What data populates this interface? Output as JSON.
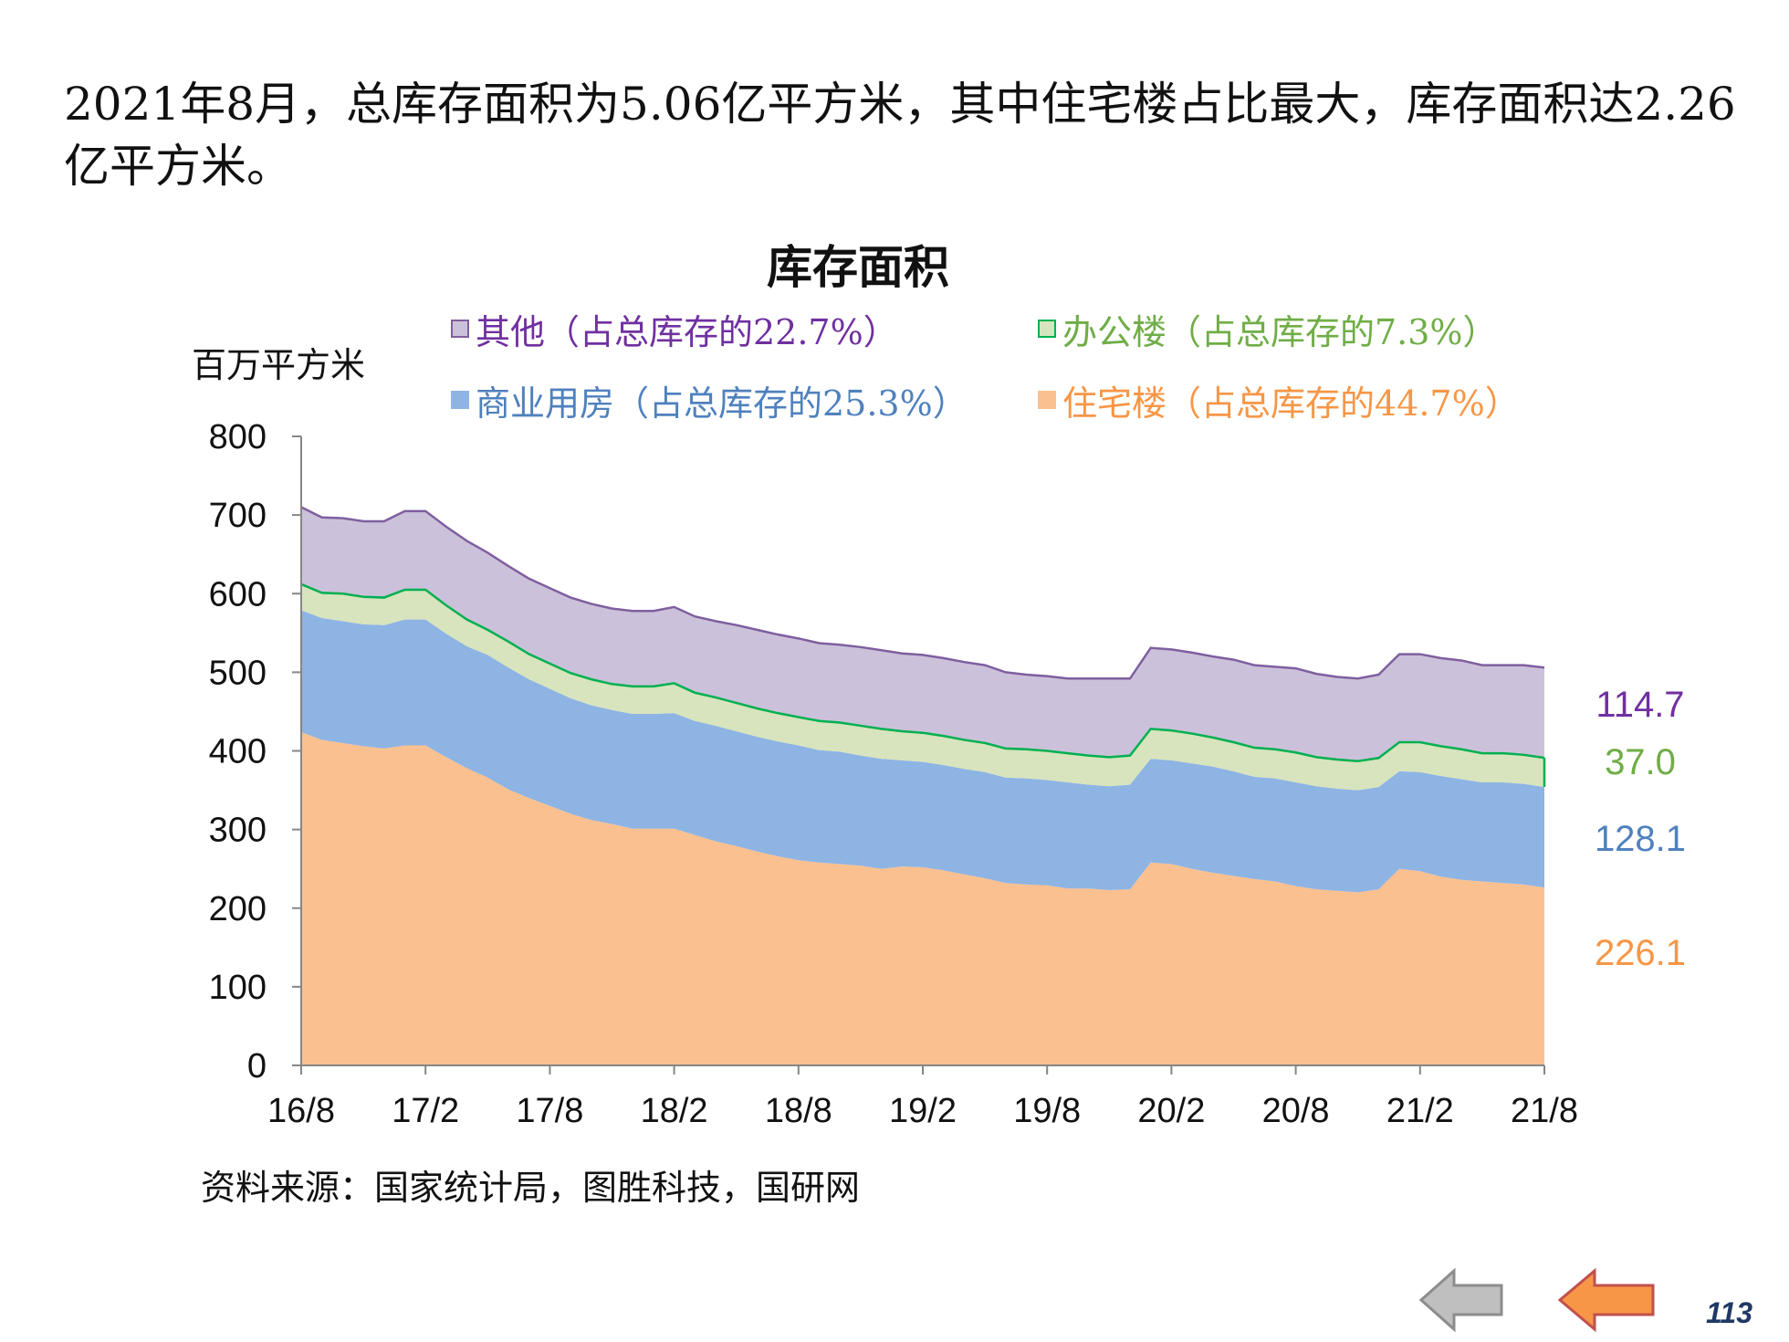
{
  "page": {
    "summary": "2021年8月，总库存面积为5.06亿平方米，其中住宅楼占比最大，库存面积达2.26亿平方米。",
    "source": "资料来源：国家统计局，图胜科技，国研网",
    "page_number": "113",
    "nav": {
      "prev_icon": "left-arrow-icon",
      "next_icon": "left-arrow-icon"
    }
  },
  "colors": {
    "residential": "#fac090",
    "commercial": "#8eb4e3",
    "office": "#d7e4bd",
    "office_line": "#00b050",
    "other": "#ccc1da",
    "other_line": "#7f5f9f",
    "label_residential": "#f79646",
    "label_commercial": "#4f81bd",
    "label_office": "#70ad47",
    "label_other": "#7030a0"
  },
  "chart_data": {
    "type": "area",
    "stacked": true,
    "title": "库存面积",
    "ylabel": "百万平方米",
    "ylim": [
      0,
      800
    ],
    "yticks": [
      "0",
      "100",
      "200",
      "300",
      "400",
      "500",
      "600",
      "700",
      "800"
    ],
    "xtick_labels": [
      "16/8",
      "17/2",
      "17/8",
      "18/2",
      "18/8",
      "19/2",
      "19/8",
      "20/2",
      "20/8",
      "21/2",
      "21/8"
    ],
    "x": [
      "16/8",
      "16/9",
      "16/10",
      "16/11",
      "16/12",
      "17/1",
      "17/2",
      "17/3",
      "17/4",
      "17/5",
      "17/6",
      "17/7",
      "17/8",
      "17/9",
      "17/10",
      "17/11",
      "17/12",
      "18/1",
      "18/2",
      "18/3",
      "18/4",
      "18/5",
      "18/6",
      "18/7",
      "18/8",
      "18/9",
      "18/10",
      "18/11",
      "18/12",
      "19/1",
      "19/2",
      "19/3",
      "19/4",
      "19/5",
      "19/6",
      "19/7",
      "19/8",
      "19/9",
      "19/10",
      "19/11",
      "19/12",
      "20/1",
      "20/2",
      "20/3",
      "20/4",
      "20/5",
      "20/6",
      "20/7",
      "20/8",
      "20/9",
      "20/10",
      "20/11",
      "20/12",
      "21/1",
      "21/2",
      "21/3",
      "21/4",
      "21/5",
      "21/6",
      "21/7",
      "21/8"
    ],
    "legend": [
      {
        "key": "other",
        "label": "其他（占总库存的22.7%）"
      },
      {
        "key": "office",
        "label": "办公楼（占总库存的7.3%）"
      },
      {
        "key": "commercial",
        "label": "商业用房（占总库存的25.3%）"
      },
      {
        "key": "residential",
        "label": "住宅楼（占总库存的44.7%）"
      }
    ],
    "series": [
      {
        "name": "住宅楼",
        "key": "residential",
        "end_label": "226.1",
        "values": [
          424,
          414,
          410,
          406,
          403,
          407,
          407,
          392,
          378,
          366,
          351,
          340,
          330,
          320,
          312,
          307,
          301,
          301,
          301,
          293,
          285,
          279,
          272,
          266,
          261,
          258,
          256,
          254,
          250,
          253,
          252,
          248,
          243,
          238,
          232,
          230,
          229,
          225,
          225,
          223,
          224,
          258,
          256,
          250,
          245,
          241,
          237,
          234,
          228,
          224,
          222,
          220,
          224,
          250,
          247,
          240,
          236,
          234,
          232,
          230,
          226.1
        ]
      },
      {
        "name": "商业用房",
        "key": "commercial",
        "values": [
          155,
          155,
          155,
          155,
          157,
          160,
          160,
          157,
          155,
          156,
          155,
          151,
          149,
          147,
          146,
          145,
          146,
          146,
          147,
          145,
          147,
          146,
          146,
          146,
          146,
          143,
          143,
          140,
          140,
          135,
          134,
          134,
          134,
          135,
          134,
          135,
          134,
          135,
          132,
          132,
          133,
          132,
          132,
          134,
          135,
          133,
          130,
          131,
          132,
          131,
          130,
          130,
          130,
          124,
          126,
          128,
          128,
          126,
          128,
          128,
          128.1
        ]
      },
      {
        "name": "办公楼",
        "key": "office",
        "end_label": "37.0",
        "values": [
          33,
          32,
          35,
          35,
          35,
          38,
          38,
          36,
          34,
          32,
          33,
          32,
          32,
          32,
          33,
          33,
          35,
          35,
          38,
          36,
          36,
          36,
          36,
          36,
          36,
          37,
          37,
          38,
          38,
          37,
          37,
          37,
          37,
          37,
          37,
          37,
          37,
          37,
          37,
          37,
          37,
          38,
          38,
          38,
          37,
          37,
          37,
          37,
          38,
          37,
          37,
          37,
          37,
          37,
          38,
          38,
          38,
          37,
          37,
          37,
          37.0
        ]
      },
      {
        "name": "其他",
        "key": "other",
        "end_label": "114.7",
        "values": [
          98,
          96,
          96,
          96,
          97,
          100,
          100,
          100,
          100,
          98,
          96,
          96,
          96,
          96,
          96,
          96,
          96,
          96,
          97,
          97,
          97,
          99,
          100,
          100,
          100,
          99,
          99,
          100,
          100,
          99,
          99,
          99,
          99,
          99,
          97,
          95,
          95,
          95,
          98,
          100,
          98,
          103,
          103,
          103,
          103,
          105,
          105,
          105,
          107,
          106,
          105,
          105,
          106,
          112,
          112,
          112,
          113,
          112,
          112,
          114,
          114.7
        ]
      }
    ]
  }
}
